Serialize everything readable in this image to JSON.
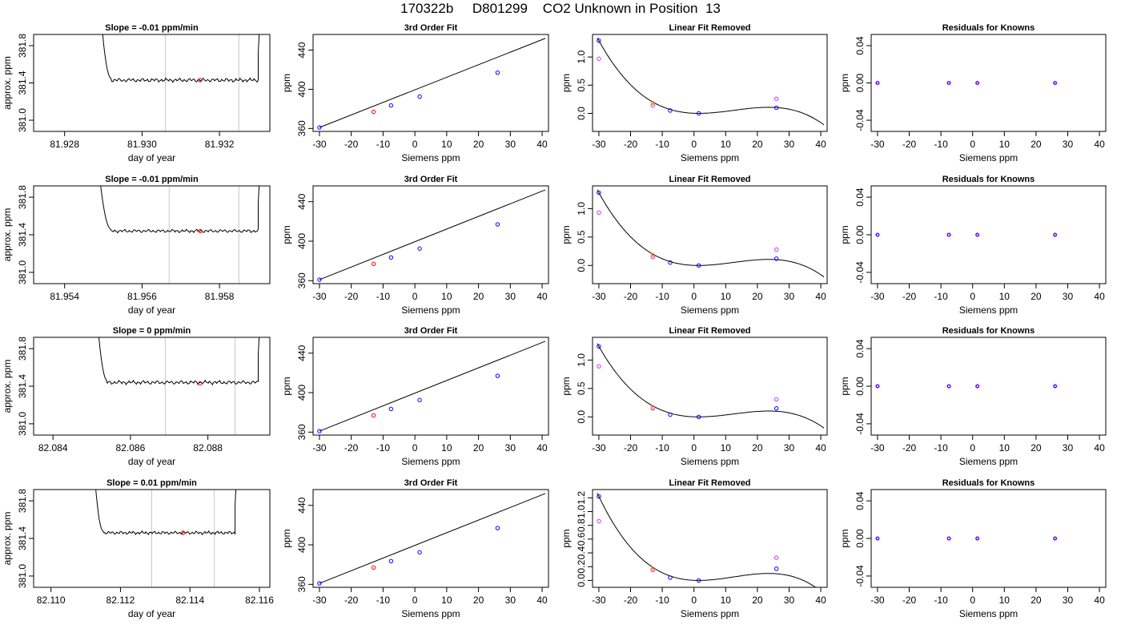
{
  "title": "170322b     D801299    CO2 Unknown in Position  13",
  "colors": {
    "curve": "#000000",
    "known": "#0000ff",
    "unknown": "#ff0000",
    "unknown_alt": "#ff8c00",
    "raw": "#cc33ff",
    "window": "#c8c8c8"
  },
  "chart_data": [
    {
      "row": 0,
      "panel": "drift",
      "type": "line",
      "title": "Slope =  -0.01  ppm/min",
      "xlabel": "day of year",
      "ylabel": "approx. ppm",
      "xlim": [
        81.9272,
        81.9333
      ],
      "ylim": [
        380.88,
        381.92
      ],
      "xticks": [
        "81.928",
        "81.930",
        "81.932"
      ],
      "yticks": [
        "381.0",
        "381.4",
        "381.8"
      ],
      "window": [
        81.9306,
        81.9325
      ],
      "mean_point": [
        81.9315,
        381.43
      ],
      "trace": {
        "start": 81.9288,
        "rise": 81.9292,
        "end": 81.933,
        "level": 381.43,
        "wiggle": 0.012
      }
    },
    {
      "row": 0,
      "panel": "fit",
      "type": "line",
      "title": "3rd Order Fit",
      "xlabel": "Siemens ppm",
      "ylabel": "ppm",
      "xlim": [
        -32,
        42
      ],
      "ylim": [
        357,
        456
      ],
      "xticks": [
        "-30",
        "-20",
        "-10",
        "0",
        "10",
        "20",
        "30",
        "40"
      ],
      "yticks": [
        "360",
        "400",
        "440"
      ],
      "knowns": [
        [
          -30,
          361
        ],
        [
          -7.5,
          383.5
        ],
        [
          1.5,
          392.5
        ],
        [
          26,
          417
        ]
      ],
      "unknown": [
        -13,
        377
      ],
      "line": [
        [
          -30,
          361
        ],
        [
          41,
          452
        ]
      ]
    },
    {
      "row": 0,
      "panel": "linfit",
      "type": "scatter",
      "title": "Linear Fit Removed",
      "xlabel": "Siemens ppm",
      "ylabel": "ppm",
      "xlim": [
        -32,
        42
      ],
      "ylim": [
        -0.32,
        1.4
      ],
      "xticks": [
        "-30",
        "-20",
        "-10",
        "0",
        "10",
        "20",
        "30",
        "40"
      ],
      "yticks": [
        "0.0",
        "0.5",
        "1.0"
      ],
      "curve_peak": 0.1,
      "knowns": [
        [
          -30,
          1.29
        ],
        [
          -7.5,
          0.05
        ],
        [
          1.5,
          0.0
        ],
        [
          26,
          0.1
        ]
      ],
      "raw": [
        [
          -30,
          0.97
        ],
        [
          -13,
          0.14
        ],
        [
          26,
          0.26
        ]
      ],
      "unknown": [
        -13,
        0.18
      ]
    },
    {
      "row": 0,
      "panel": "resid",
      "type": "scatter",
      "title": "Residuals for Knowns",
      "xlabel": "Siemens ppm",
      "ylabel": "ppm",
      "xlim": [
        -32,
        42
      ],
      "ylim": [
        -0.052,
        0.052
      ],
      "xticks": [
        "-30",
        "-20",
        "-10",
        "0",
        "10",
        "20",
        "30",
        "40"
      ],
      "yticks": [
        "-0.04",
        "0.00",
        "0.04"
      ],
      "points": [
        [
          -30,
          0
        ],
        [
          -7.5,
          0
        ],
        [
          1.5,
          0
        ],
        [
          26,
          0
        ]
      ]
    },
    {
      "row": 1,
      "panel": "drift",
      "type": "line",
      "title": "Slope =  -0.01  ppm/min",
      "xlabel": "day of year",
      "ylabel": "approx. ppm",
      "xlim": [
        81.9532,
        81.9593
      ],
      "ylim": [
        380.88,
        381.92
      ],
      "xticks": [
        "81.954",
        "81.956",
        "81.958"
      ],
      "yticks": [
        "381.0",
        "381.4",
        "381.8"
      ],
      "window": [
        81.9567,
        81.9585
      ],
      "mean_point": [
        81.9575,
        381.44
      ],
      "trace": {
        "start": 81.9547,
        "rise": 81.9552,
        "end": 81.959,
        "level": 381.44,
        "wiggle": 0.01
      }
    },
    {
      "row": 1,
      "panel": "fit",
      "type": "line",
      "title": "3rd Order Fit",
      "xlabel": "Siemens ppm",
      "ylabel": "ppm",
      "xlim": [
        -32,
        42
      ],
      "ylim": [
        357,
        456
      ],
      "xticks": [
        "-30",
        "-20",
        "-10",
        "0",
        "10",
        "20",
        "30",
        "40"
      ],
      "yticks": [
        "360",
        "400",
        "440"
      ],
      "knowns": [
        [
          -30,
          361
        ],
        [
          -7.5,
          383.5
        ],
        [
          1.5,
          392.5
        ],
        [
          26,
          417
        ]
      ],
      "unknown": [
        -13,
        377
      ],
      "line": [
        [
          -30,
          361
        ],
        [
          41,
          452
        ]
      ]
    },
    {
      "row": 1,
      "panel": "linfit",
      "type": "scatter",
      "title": "Linear Fit Removed",
      "xlabel": "Siemens ppm",
      "ylabel": "ppm",
      "xlim": [
        -32,
        42
      ],
      "ylim": [
        -0.32,
        1.4
      ],
      "xticks": [
        "-30",
        "-20",
        "-10",
        "0",
        "10",
        "20",
        "30",
        "40"
      ],
      "yticks": [
        "0.0",
        "0.5",
        "1.0"
      ],
      "curve_peak": 0.12,
      "knowns": [
        [
          -30,
          1.28
        ],
        [
          -7.5,
          0.05
        ],
        [
          1.5,
          0.0
        ],
        [
          26,
          0.12
        ]
      ],
      "raw": [
        [
          -30,
          0.93
        ],
        [
          -13,
          0.15
        ],
        [
          26,
          0.28
        ]
      ],
      "unknown": [
        -13,
        0.18
      ]
    },
    {
      "row": 1,
      "panel": "resid",
      "type": "scatter",
      "title": "Residuals for Knowns",
      "xlabel": "Siemens ppm",
      "ylabel": "ppm",
      "xlim": [
        -32,
        42
      ],
      "ylim": [
        -0.052,
        0.052
      ],
      "xticks": [
        "-30",
        "-20",
        "-10",
        "0",
        "10",
        "20",
        "30",
        "40"
      ],
      "yticks": [
        "-0.04",
        "0.00",
        "0.04"
      ],
      "points": [
        [
          -30,
          0
        ],
        [
          -7.5,
          0
        ],
        [
          1.5,
          0
        ],
        [
          26,
          0
        ]
      ]
    },
    {
      "row": 2,
      "panel": "drift",
      "type": "line",
      "title": "Slope =  0  ppm/min",
      "xlabel": "day of year",
      "ylabel": "approx. ppm",
      "xlim": [
        82.0835,
        82.0896
      ],
      "ylim": [
        380.88,
        381.92
      ],
      "xticks": [
        "82.084",
        "82.086",
        "82.088"
      ],
      "yticks": [
        "381.0",
        "381.4",
        "381.8"
      ],
      "window": [
        82.0869,
        82.0887
      ],
      "mean_point": [
        82.0878,
        381.43
      ],
      "trace": {
        "start": 82.085,
        "rise": 82.0854,
        "end": 82.0893,
        "level": 381.44,
        "wiggle": 0.012
      }
    },
    {
      "row": 2,
      "panel": "fit",
      "type": "line",
      "title": "3rd Order Fit",
      "xlabel": "Siemens ppm",
      "ylabel": "ppm",
      "xlim": [
        -32,
        42
      ],
      "ylim": [
        357,
        456
      ],
      "xticks": [
        "-30",
        "-20",
        "-10",
        "0",
        "10",
        "20",
        "30",
        "40"
      ],
      "yticks": [
        "360",
        "400",
        "440"
      ],
      "knowns": [
        [
          -30,
          361
        ],
        [
          -7.5,
          383.5
        ],
        [
          1.5,
          392.5
        ],
        [
          26,
          417
        ]
      ],
      "unknown": [
        -13,
        377
      ],
      "line": [
        [
          -30,
          361
        ],
        [
          41,
          452
        ]
      ]
    },
    {
      "row": 2,
      "panel": "linfit",
      "type": "scatter",
      "title": "Linear Fit Removed",
      "xlabel": "Siemens ppm",
      "ylabel": "ppm",
      "xlim": [
        -32,
        42
      ],
      "ylim": [
        -0.32,
        1.4
      ],
      "xticks": [
        "-30",
        "-20",
        "-10",
        "0",
        "10",
        "20",
        "30",
        "40"
      ],
      "yticks": [
        "0.0",
        "0.5",
        "1.0"
      ],
      "curve_peak": 0.15,
      "knowns": [
        [
          -30,
          1.24
        ],
        [
          -7.5,
          0.04
        ],
        [
          1.5,
          0.0
        ],
        [
          26,
          0.15
        ]
      ],
      "raw": [
        [
          -30,
          0.89
        ],
        [
          -13,
          0.15
        ],
        [
          26,
          0.31
        ]
      ],
      "unknown": [
        -13,
        0.17
      ]
    },
    {
      "row": 2,
      "panel": "resid",
      "type": "scatter",
      "title": "Residuals for Knowns",
      "xlabel": "Siemens ppm",
      "ylabel": "ppm",
      "xlim": [
        -32,
        42
      ],
      "ylim": [
        -0.052,
        0.052
      ],
      "xticks": [
        "-30",
        "-20",
        "-10",
        "0",
        "10",
        "20",
        "30",
        "40"
      ],
      "yticks": [
        "-0.04",
        "0.00",
        "0.04"
      ],
      "points": [
        [
          -30,
          0
        ],
        [
          -7.5,
          0
        ],
        [
          1.5,
          0
        ],
        [
          26,
          0
        ]
      ]
    },
    {
      "row": 3,
      "panel": "drift",
      "type": "line",
      "title": "Slope =  0.01  ppm/min",
      "xlabel": "day of year",
      "ylabel": "approx. ppm",
      "xlim": [
        82.1095,
        82.1163
      ],
      "ylim": [
        380.88,
        381.92
      ],
      "xticks": [
        "82.110",
        "82.112",
        "82.114",
        "82.116"
      ],
      "yticks": [
        "381.0",
        "381.4",
        "381.8"
      ],
      "window": [
        82.1129,
        82.1147
      ],
      "mean_point": [
        82.1138,
        381.46
      ],
      "trace": {
        "start": 82.1111,
        "rise": 82.1115,
        "end": 82.1153,
        "level": 381.46,
        "wiggle": 0.01
      }
    },
    {
      "row": 3,
      "panel": "fit",
      "type": "line",
      "title": "3rd Order Fit",
      "xlabel": "Siemens ppm",
      "ylabel": "ppm",
      "xlim": [
        -32,
        42
      ],
      "ylim": [
        357,
        456
      ],
      "xticks": [
        "-30",
        "-20",
        "-10",
        "0",
        "10",
        "20",
        "30",
        "40"
      ],
      "yticks": [
        "360",
        "400",
        "440"
      ],
      "knowns": [
        [
          -30,
          361
        ],
        [
          -7.5,
          383.5
        ],
        [
          1.5,
          392.5
        ],
        [
          26,
          417
        ]
      ],
      "unknown": [
        -13,
        377
      ],
      "line": [
        [
          -30,
          361
        ],
        [
          41,
          452
        ]
      ]
    },
    {
      "row": 3,
      "panel": "linfit",
      "type": "scatter",
      "title": "Linear Fit Removed",
      "xlabel": "Siemens ppm",
      "ylabel": "ppm",
      "xlim": [
        -32,
        42
      ],
      "ylim": [
        -0.1,
        1.32
      ],
      "xticks": [
        "-30",
        "-20",
        "-10",
        "0",
        "10",
        "20",
        "30",
        "40"
      ],
      "yticks": [
        "0.0",
        "0.2",
        "0.4",
        "0.6",
        "0.8",
        "1.0",
        "1.2"
      ],
      "curve_peak": 0.17,
      "knowns": [
        [
          -30,
          1.22
        ],
        [
          -7.5,
          0.04
        ],
        [
          1.5,
          0.0
        ],
        [
          26,
          0.17
        ]
      ],
      "raw": [
        [
          -30,
          0.86
        ],
        [
          -13,
          0.15
        ],
        [
          26,
          0.33
        ]
      ],
      "unknown": [
        -13,
        0.17
      ]
    },
    {
      "row": 3,
      "panel": "resid",
      "type": "scatter",
      "title": "Residuals for Knowns",
      "xlabel": "Siemens ppm",
      "ylabel": "ppm",
      "xlim": [
        -32,
        42
      ],
      "ylim": [
        -0.052,
        0.052
      ],
      "xticks": [
        "-30",
        "-20",
        "-10",
        "0",
        "10",
        "20",
        "30",
        "40"
      ],
      "yticks": [
        "-0.04",
        "0.00",
        "0.04"
      ],
      "points": [
        [
          -30,
          0
        ],
        [
          -7.5,
          0
        ],
        [
          1.5,
          0
        ],
        [
          26,
          0
        ]
      ]
    }
  ]
}
